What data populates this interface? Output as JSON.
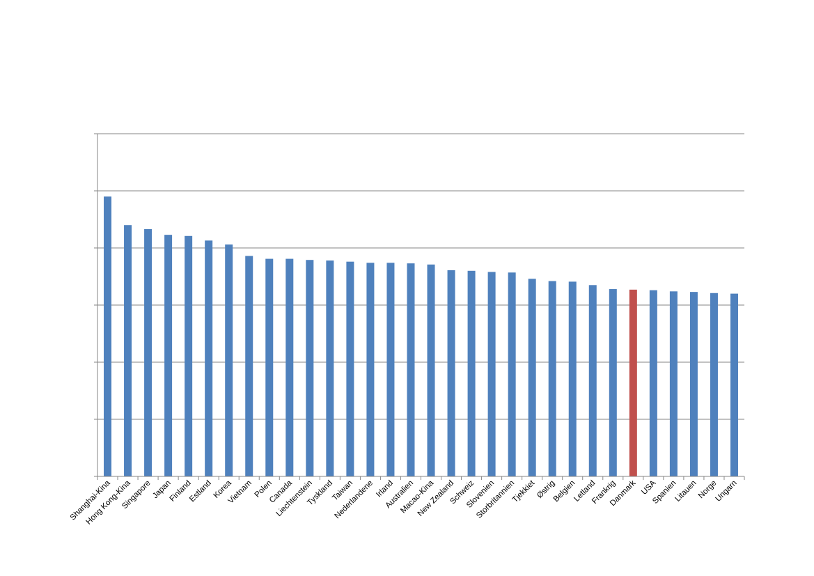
{
  "chart_data": {
    "type": "bar",
    "title": "",
    "xlabel": "",
    "ylabel": "",
    "ylim": [
      0,
      600
    ],
    "yticks": [
      0,
      100,
      200,
      300,
      400,
      500,
      600
    ],
    "grid": true,
    "legend": "none",
    "categories": [
      "Shanghai-Kina",
      "Hong Kong-Kina",
      "Singapore",
      "Japan",
      "Finland",
      "Estland",
      "Korea",
      "Vietnam",
      "Polen",
      "Canada",
      "Liechtenstein",
      "Tyskland",
      "Taiwan",
      "Nederlandene",
      "Irland",
      "Australien",
      "Macao-Kina",
      "New Zealand",
      "Schweiz",
      "Slovenien",
      "Storbritannien",
      "Tjekkiet",
      "Østrig",
      "Belgien",
      "Letland",
      "Frankrig",
      "Danmark",
      "USA",
      "Spanien",
      "Litauen",
      "Norge",
      "Ungarn"
    ],
    "values": [
      490,
      440,
      433,
      423,
      421,
      413,
      406,
      386,
      381,
      381,
      379,
      378,
      376,
      374,
      374,
      373,
      371,
      361,
      360,
      358,
      357,
      346,
      342,
      341,
      335,
      328,
      327,
      326,
      324,
      323,
      321,
      320
    ],
    "colors": {
      "default": "#4F81BD",
      "highlight": "#C0504D",
      "grid": "#868686",
      "axis": "#868686"
    },
    "highlight_category": "Danmark"
  }
}
